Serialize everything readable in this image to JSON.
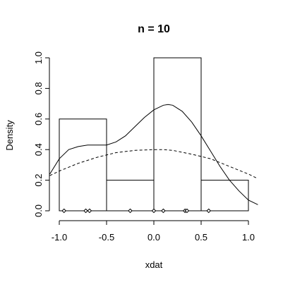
{
  "chart_data": {
    "type": "histogram",
    "title": "n = 10",
    "xlabel": "xdat",
    "ylabel": "Density",
    "xlim": [
      -1.1,
      1.1
    ],
    "ylim": [
      0,
      1.0
    ],
    "x_ticks": [
      -1.0,
      -0.5,
      0.0,
      0.5,
      1.0
    ],
    "x_tick_labels": [
      "-1.0",
      "-0.5",
      "0.0",
      "0.5",
      "1.0"
    ],
    "y_ticks": [
      0.0,
      0.2,
      0.4,
      0.6,
      0.8,
      1.0
    ],
    "y_tick_labels": [
      "0.0",
      "0.2",
      "0.4",
      "0.6",
      "0.8",
      "1.0"
    ],
    "bins": [
      {
        "x0": -1.0,
        "x1": -0.5,
        "density": 0.6
      },
      {
        "x0": -0.5,
        "x1": 0.0,
        "density": 0.2
      },
      {
        "x0": 0.0,
        "x1": 0.5,
        "density": 1.0
      },
      {
        "x0": 0.5,
        "x1": 1.0,
        "density": 0.2
      }
    ],
    "rug_points": [
      -0.95,
      -0.72,
      -0.68,
      -0.25,
      0.0,
      0.1,
      0.33,
      0.35,
      0.58
    ],
    "series": [
      {
        "style": "solid",
        "x": [
          -1.1,
          -1.0,
          -0.9,
          -0.8,
          -0.7,
          -0.6,
          -0.5,
          -0.4,
          -0.3,
          -0.2,
          -0.1,
          0.0,
          0.1,
          0.15,
          0.2,
          0.3,
          0.4,
          0.5,
          0.6,
          0.7,
          0.8,
          0.9,
          1.0,
          1.1
        ],
        "y": [
          0.24,
          0.34,
          0.4,
          0.42,
          0.43,
          0.43,
          0.43,
          0.45,
          0.49,
          0.55,
          0.61,
          0.66,
          0.69,
          0.695,
          0.69,
          0.65,
          0.58,
          0.49,
          0.39,
          0.29,
          0.2,
          0.13,
          0.07,
          0.04
        ]
      },
      {
        "style": "dashed",
        "x": [
          -1.1,
          -1.0,
          -0.8,
          -0.6,
          -0.4,
          -0.2,
          0.0,
          0.1,
          0.2,
          0.4,
          0.6,
          0.8,
          1.0,
          1.1
        ],
        "y": [
          0.23,
          0.26,
          0.31,
          0.35,
          0.38,
          0.395,
          0.4,
          0.4,
          0.395,
          0.37,
          0.34,
          0.29,
          0.24,
          0.21
        ]
      }
    ]
  }
}
